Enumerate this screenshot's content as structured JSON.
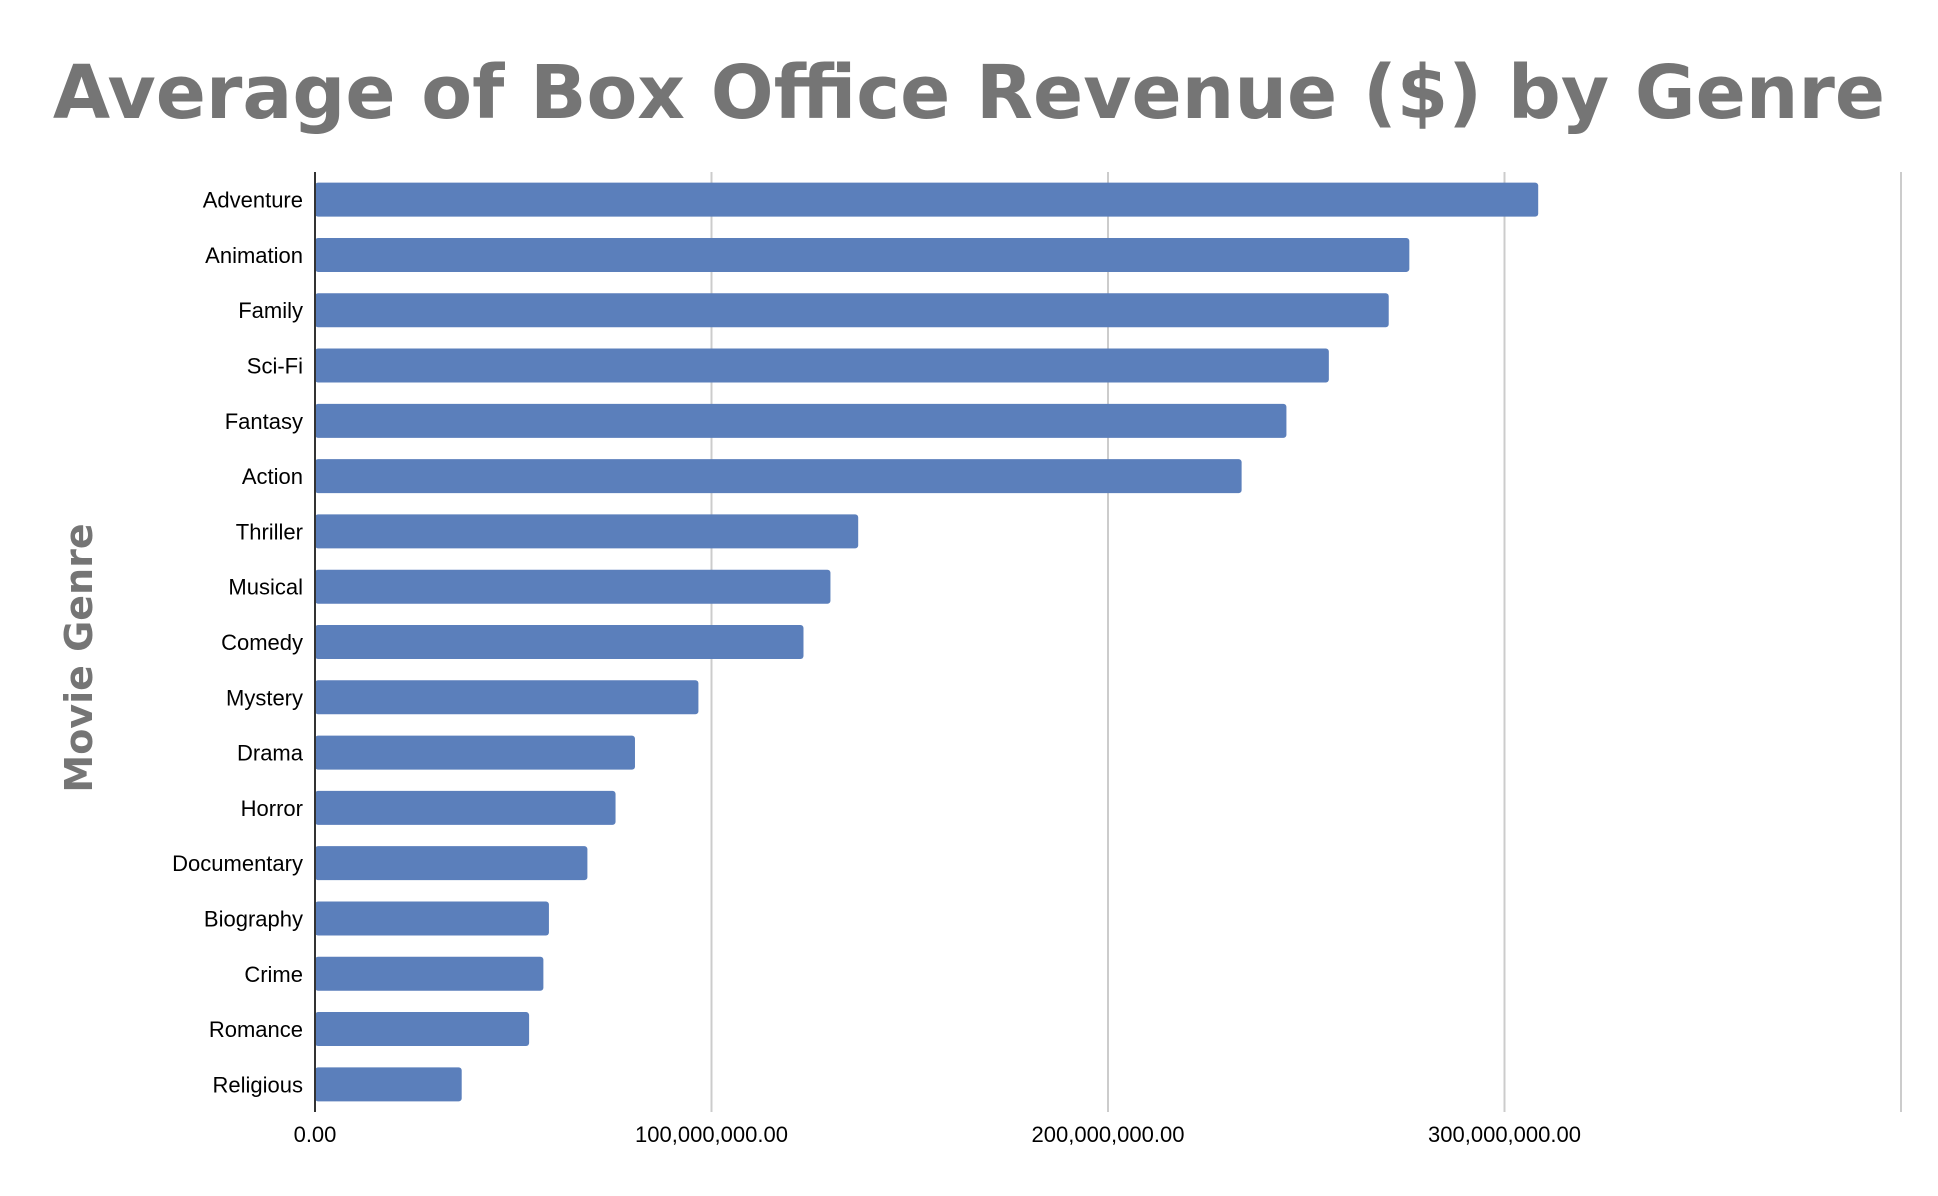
{
  "chart_data": {
    "type": "bar",
    "orientation": "horizontal",
    "title": "Average of Box Office Revenue ($) by Genre",
    "xlabel": "",
    "ylabel": "Movie Genre",
    "categories": [
      "Adventure",
      "Animation",
      "Family",
      "Sci-Fi",
      "Fantasy",
      "Action",
      "Thriller",
      "Musical",
      "Comedy",
      "Mystery",
      "Drama",
      "Horror",
      "Documentary",
      "Biography",
      "Crime",
      "Romance",
      "Religious"
    ],
    "values": [
      308500000,
      276000000,
      270800000,
      255700000,
      245000000,
      233700000,
      137000000,
      130000000,
      123200000,
      96700000,
      80700000,
      75800000,
      68700000,
      59000000,
      57600000,
      54000000,
      37000000
    ],
    "xlim": [
      0,
      400000000
    ],
    "xticks": [
      0,
      100000000,
      200000000,
      300000000,
      400000000
    ],
    "xtick_labels": [
      "0.00",
      "100,000,000.00",
      "200,000,000.00",
      "300,000,000.00",
      ""
    ],
    "grid": true,
    "legend": "none",
    "colors": {
      "bar": "#5b7fbb",
      "title": "#757575",
      "grid": "#cccccc",
      "axis": "#333333"
    }
  }
}
